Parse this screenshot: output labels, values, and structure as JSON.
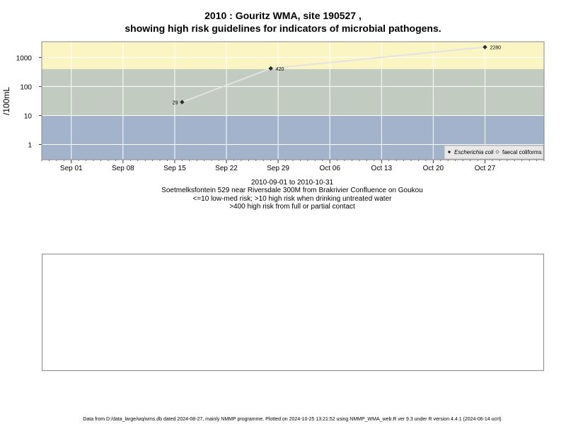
{
  "chart_data": {
    "type": "line",
    "title": "2010 : Gouritz WMA, site 190527 ,",
    "subtitle": "showing high risk guidelines for indicators of microbial pathogens.",
    "ylabel": "/100mL",
    "y_scale": "log",
    "ylim": [
      0.3,
      3500
    ],
    "y_ticks": [
      1,
      10,
      100,
      1000
    ],
    "y_tick_labels": [
      "1",
      "10",
      "100",
      "1000"
    ],
    "xlim": [
      "2010-08-28",
      "2010-11-04"
    ],
    "x_ticks": [
      "2010-09-01",
      "2010-09-08",
      "2010-09-15",
      "2010-09-22",
      "2010-09-29",
      "2010-10-06",
      "2010-10-13",
      "2010-10-20",
      "2010-10-27"
    ],
    "x_tick_labels": [
      "Sep 01",
      "Sep 08",
      "Sep 15",
      "Sep 22",
      "Sep 29",
      "Oct 06",
      "Oct 13",
      "Oct 20",
      "Oct 27"
    ],
    "risk_bands": [
      {
        "from": 0.3,
        "to": 10,
        "color": "#a2b3cb"
      },
      {
        "from": 10,
        "to": 400,
        "color": "#c2cbbf"
      },
      {
        "from": 400,
        "to": 3500,
        "color": "#fbf4c3"
      }
    ],
    "series": [
      {
        "name": "Escherichia coli",
        "points": [
          {
            "x": "2010-09-16",
            "y": 29,
            "label": "29"
          },
          {
            "x": "2010-09-28",
            "y": 420,
            "label": "420"
          },
          {
            "x": "2010-10-27",
            "y": 2280,
            "label": "2280"
          }
        ]
      },
      {
        "name": "faecal coliforms",
        "points": []
      }
    ],
    "legend_position": "bottom-right",
    "grid": true,
    "colors": {
      "line": "#e2e2e2",
      "point": "#2b2b2b",
      "gridline": "#ffffff"
    }
  },
  "subtitles": {
    "date_range": "2010-09-01 to 2010-10-31",
    "site": "Soetmelksfontein 529 near Riversdale 300M from Brakrivier Confluence on Goukou",
    "guide1": "<=10 low-med risk; >10 high risk when drinking untreated water",
    "guide2": ">400 high risk from full or partial contact"
  },
  "footer": "Data from D:/data_large/wq/wms.db dated 2024-08-27, mainly NMMP programme. Plotted on 2024-10-25 13:21:52 using NMMP_WMA_web.R ver 9.3 under R version 4.4.1 (2024-06-14 ucrt)"
}
